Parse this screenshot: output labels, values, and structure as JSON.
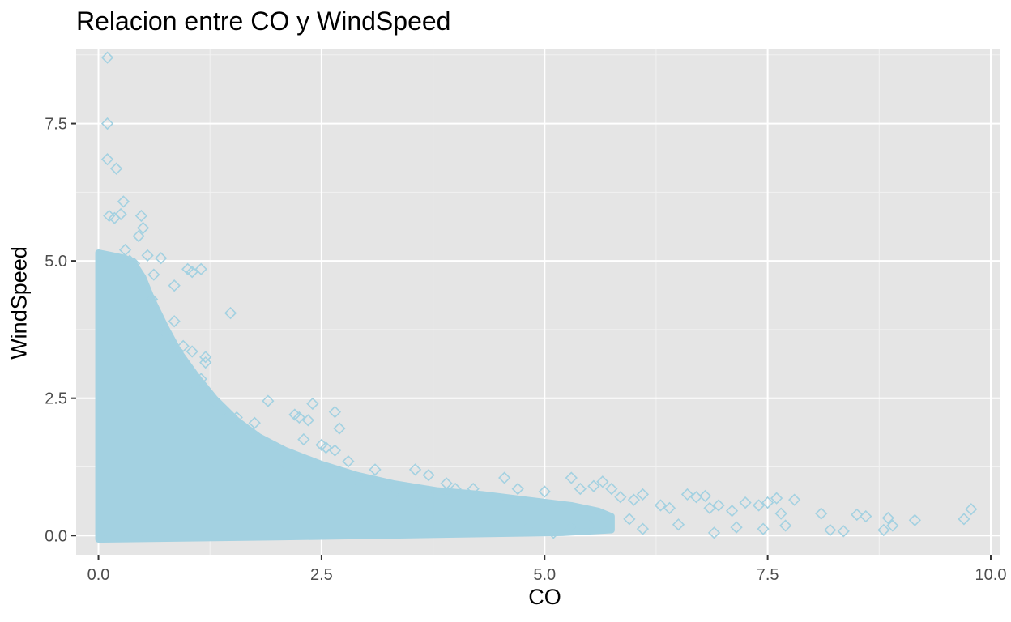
{
  "chart_data": {
    "type": "scatter",
    "title": "Relacion entre CO y WindSpeed",
    "xlabel": "CO",
    "ylabel": "WindSpeed",
    "xlim": [
      -0.25,
      10.1
    ],
    "ylim": [
      -0.35,
      8.85
    ],
    "x_ticks": [
      0.0,
      2.5,
      5.0,
      7.5,
      10.0
    ],
    "x_tick_labels": [
      "0.0",
      "2.5",
      "5.0",
      "7.5",
      "10.0"
    ],
    "y_ticks": [
      0.0,
      2.5,
      5.0,
      7.5
    ],
    "y_tick_labels": [
      "0.0",
      "2.5",
      "5.0",
      "7.5"
    ],
    "grid": true,
    "marker": "diamond-open",
    "marker_color": "#a3d1e1",
    "panel_background": "#e5e5e5",
    "points": [
      [
        0.1,
        8.7
      ],
      [
        0.1,
        7.5
      ],
      [
        0.1,
        6.85
      ],
      [
        0.2,
        6.68
      ],
      [
        0.28,
        6.08
      ],
      [
        0.12,
        5.82
      ],
      [
        0.18,
        5.78
      ],
      [
        0.25,
        5.85
      ],
      [
        0.48,
        5.82
      ],
      [
        0.5,
        5.6
      ],
      [
        0.45,
        5.45
      ],
      [
        0.55,
        5.1
      ],
      [
        0.7,
        5.05
      ],
      [
        0.62,
        4.75
      ],
      [
        0.85,
        4.55
      ],
      [
        1.0,
        4.85
      ],
      [
        1.05,
        4.8
      ],
      [
        1.15,
        4.85
      ],
      [
        1.48,
        4.05
      ],
      [
        0.85,
        3.9
      ],
      [
        0.95,
        3.45
      ],
      [
        1.05,
        3.35
      ],
      [
        1.2,
        3.25
      ],
      [
        1.2,
        3.15
      ],
      [
        1.15,
        2.85
      ],
      [
        1.0,
        2.7
      ],
      [
        1.3,
        2.45
      ],
      [
        1.4,
        2.3
      ],
      [
        1.55,
        2.15
      ],
      [
        1.75,
        2.05
      ],
      [
        1.9,
        2.45
      ],
      [
        2.2,
        2.2
      ],
      [
        2.25,
        2.15
      ],
      [
        2.35,
        2.1
      ],
      [
        2.4,
        2.4
      ],
      [
        2.65,
        2.25
      ],
      [
        2.7,
        1.95
      ],
      [
        2.3,
        1.75
      ],
      [
        2.5,
        1.65
      ],
      [
        2.55,
        1.6
      ],
      [
        2.65,
        1.55
      ],
      [
        2.8,
        1.35
      ],
      [
        3.1,
        1.2
      ],
      [
        3.55,
        1.2
      ],
      [
        3.7,
        1.1
      ],
      [
        3.9,
        0.95
      ],
      [
        4.0,
        0.85
      ],
      [
        4.2,
        0.85
      ],
      [
        4.55,
        1.05
      ],
      [
        4.7,
        0.85
      ],
      [
        5.0,
        0.8
      ],
      [
        5.3,
        1.05
      ],
      [
        5.4,
        0.85
      ],
      [
        5.55,
        0.9
      ],
      [
        5.65,
        0.98
      ],
      [
        5.75,
        0.85
      ],
      [
        5.85,
        0.7
      ],
      [
        6.0,
        0.65
      ],
      [
        6.1,
        0.75
      ],
      [
        6.3,
        0.55
      ],
      [
        6.4,
        0.5
      ],
      [
        6.6,
        0.75
      ],
      [
        6.7,
        0.7
      ],
      [
        6.8,
        0.72
      ],
      [
        6.85,
        0.5
      ],
      [
        6.95,
        0.55
      ],
      [
        7.1,
        0.45
      ],
      [
        7.25,
        0.6
      ],
      [
        7.4,
        0.55
      ],
      [
        7.5,
        0.6
      ],
      [
        7.6,
        0.68
      ],
      [
        7.65,
        0.4
      ],
      [
        7.8,
        0.65
      ],
      [
        8.1,
        0.4
      ],
      [
        8.2,
        0.1
      ],
      [
        8.35,
        0.08
      ],
      [
        8.5,
        0.38
      ],
      [
        8.6,
        0.35
      ],
      [
        8.8,
        0.1
      ],
      [
        8.85,
        0.32
      ],
      [
        8.9,
        0.18
      ],
      [
        9.15,
        0.28
      ],
      [
        9.7,
        0.3
      ],
      [
        9.78,
        0.48
      ],
      [
        5.95,
        0.3
      ],
      [
        6.1,
        0.12
      ],
      [
        6.5,
        0.2
      ],
      [
        6.9,
        0.05
      ],
      [
        7.15,
        0.15
      ],
      [
        7.45,
        0.12
      ],
      [
        7.7,
        0.18
      ],
      [
        5.3,
        0.15
      ],
      [
        5.1,
        0.05
      ],
      [
        5.5,
        0.2
      ],
      [
        4.8,
        0.15
      ],
      [
        3.3,
        0.75
      ],
      [
        3.6,
        0.6
      ],
      [
        2.9,
        1.0
      ],
      [
        2.1,
        1.3
      ],
      [
        1.7,
        1.6
      ],
      [
        0.6,
        4.3
      ],
      [
        0.75,
        3.7
      ],
      [
        0.4,
        4.95
      ],
      [
        0.3,
        5.2
      ],
      [
        0.35,
        5.0
      ]
    ]
  }
}
